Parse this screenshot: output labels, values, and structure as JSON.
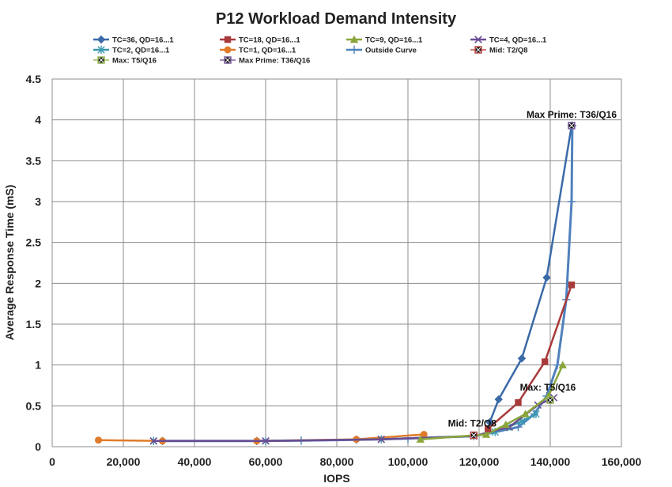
{
  "chart_data": {
    "type": "line",
    "title": "P12 Workload Demand Intensity",
    "xlabel": "IOPS",
    "ylabel": "Average Response Time (mS)",
    "xlim": [
      0,
      160000
    ],
    "ylim": [
      0,
      4.5
    ],
    "x_ticks": [
      0,
      20000,
      40000,
      60000,
      80000,
      100000,
      120000,
      140000,
      160000
    ],
    "x_tick_labels": [
      "0",
      "20,000",
      "40,000",
      "60,000",
      "80,000",
      "100,000",
      "120,000",
      "140,000",
      "160,000"
    ],
    "y_ticks": [
      0,
      0.5,
      1,
      1.5,
      2,
      2.5,
      3,
      3.5,
      4,
      4.5
    ],
    "y_tick_labels": [
      "0",
      "0.5",
      "1",
      "1.5",
      "2",
      "2.5",
      "3",
      "3.5",
      "4",
      "4.5"
    ],
    "grid": true,
    "legend_position": "top",
    "series": [
      {
        "name": "TC=36, QD=16...1",
        "color": "#3a6aa8",
        "marker": "diamond",
        "x": [
          123000,
          125500,
          132000,
          139000,
          146000
        ],
        "y": [
          0.3,
          0.58,
          1.08,
          2.07,
          3.93
        ]
      },
      {
        "name": "TC=18, QD=16...1",
        "color": "#a83a3a",
        "marker": "square",
        "x": [
          122500,
          131000,
          138500,
          146000
        ],
        "y": [
          0.22,
          0.54,
          1.04,
          1.98
        ]
      },
      {
        "name": "TC=9, QD=16...1",
        "color": "#8aa63a",
        "marker": "triangle",
        "x": [
          103500,
          122000,
          127500,
          133000,
          139500,
          143500
        ],
        "y": [
          0.09,
          0.15,
          0.27,
          0.4,
          0.62,
          1.0
        ]
      },
      {
        "name": "TC=4, QD=16...1",
        "color": "#6a4c93",
        "marker": "x",
        "x": [
          28500,
          60000,
          92500,
          118500,
          128500,
          136500,
          141000
        ],
        "y": [
          0.07,
          0.07,
          0.09,
          0.13,
          0.24,
          0.51,
          0.6
        ]
      },
      {
        "name": "TC=2, QD=16...1",
        "color": "#3a9ab0",
        "marker": "asterisk",
        "x": [
          28500,
          60000,
          92500,
          118500,
          124500,
          128000,
          132000,
          136000
        ],
        "y": [
          0.07,
          0.07,
          0.09,
          0.13,
          0.18,
          0.24,
          0.31,
          0.4
        ]
      },
      {
        "name": "TC=1, QD=16...1",
        "color": "#e07b2a",
        "marker": "circle",
        "x": [
          13000,
          31000,
          57500,
          85500,
          104500
        ],
        "y": [
          0.08,
          0.07,
          0.07,
          0.09,
          0.15
        ]
      },
      {
        "name": "Outside Curve",
        "color": "#4f81bd",
        "marker": "plus",
        "x": [
          31000,
          57500,
          70000,
          85500,
          100000,
          118500,
          122500,
          131000,
          135500,
          139000,
          142000,
          144500,
          146000,
          146200
        ],
        "y": [
          0.07,
          0.07,
          0.075,
          0.085,
          0.1,
          0.13,
          0.16,
          0.24,
          0.4,
          0.62,
          1.0,
          1.8,
          3.0,
          3.93
        ]
      },
      {
        "name": "Mid: T2/Q8",
        "color": "#c0504d",
        "marker": "box-x",
        "x": [
          118500
        ],
        "y": [
          0.14
        ]
      },
      {
        "name": "Max: T5/Q16",
        "color": "#9bbb59",
        "marker": "box-x",
        "x": [
          140000
        ],
        "y": [
          0.57
        ]
      },
      {
        "name": "Max Prime: T36/Q16",
        "color": "#8064a2",
        "marker": "box-x",
        "x": [
          146000
        ],
        "y": [
          3.93
        ]
      }
    ],
    "annotations": [
      {
        "text": "Max Prime: T36/Q16",
        "x": 146000,
        "y": 3.93
      },
      {
        "text": "Max: T5/Q16",
        "x": 140000,
        "y": 0.57
      },
      {
        "text": "Mid: T2/Q8",
        "x": 118500,
        "y": 0.14
      }
    ]
  }
}
